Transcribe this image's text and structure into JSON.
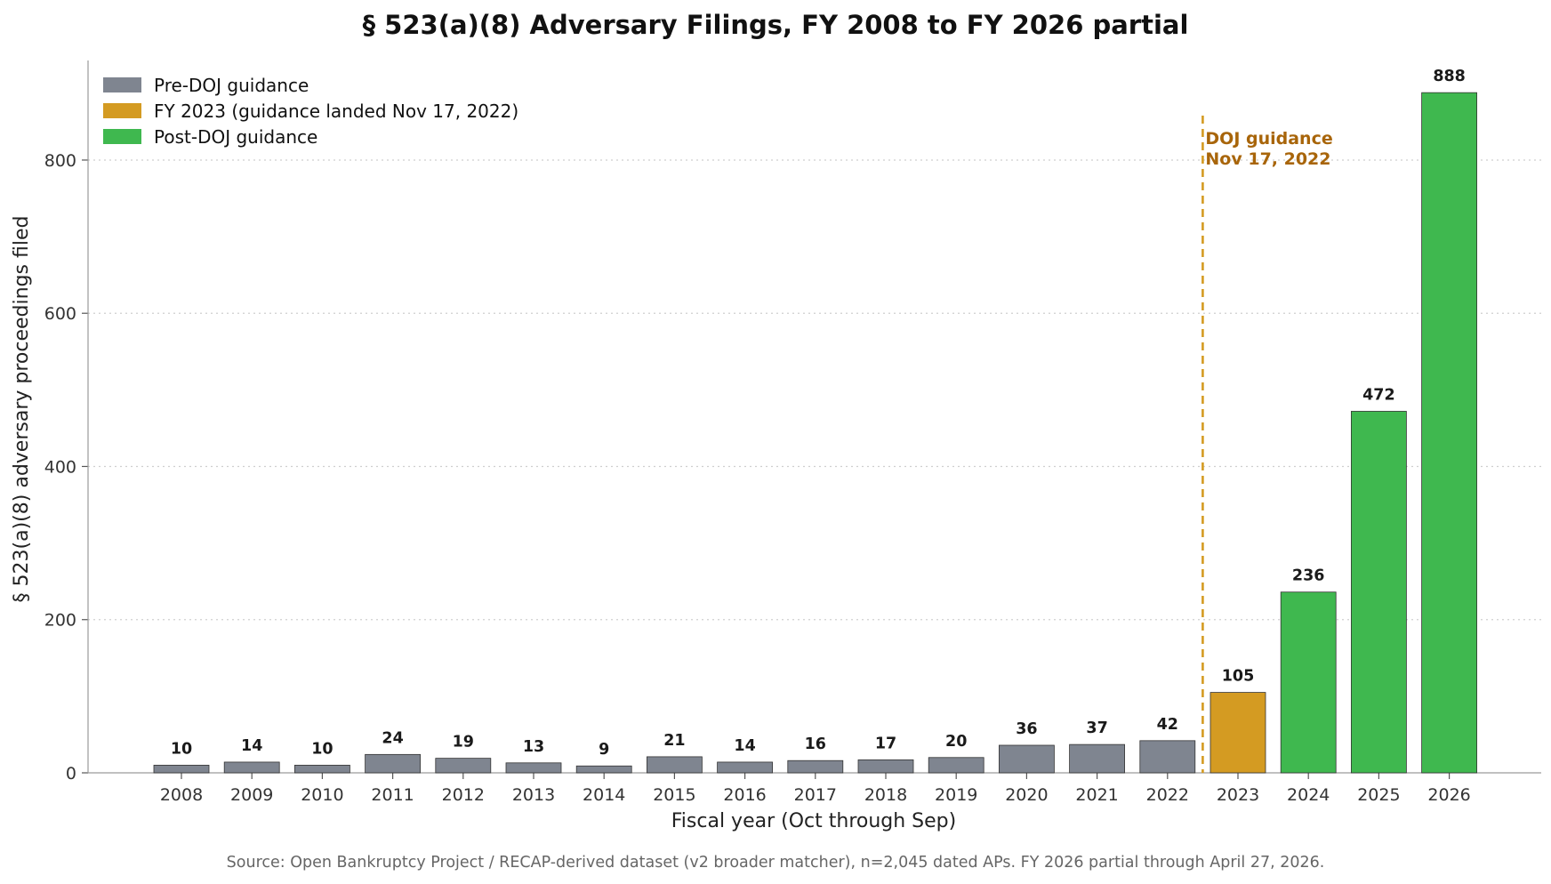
{
  "chart_data": {
    "type": "bar",
    "title": "§ 523(a)(8) Adversary Filings, FY 2008 to FY 2026 partial",
    "xlabel": "Fiscal year (Oct through Sep)",
    "ylabel": "§ 523(a)(8) adversary proceedings filed",
    "categories": [
      "2008",
      "2009",
      "2010",
      "2011",
      "2012",
      "2013",
      "2014",
      "2015",
      "2016",
      "2017",
      "2018",
      "2019",
      "2020",
      "2021",
      "2022",
      "2023",
      "2024",
      "2025",
      "2026"
    ],
    "values": [
      10,
      14,
      10,
      24,
      19,
      13,
      9,
      21,
      14,
      16,
      17,
      20,
      36,
      37,
      42,
      105,
      236,
      472,
      888
    ],
    "groups": [
      "pre",
      "pre",
      "pre",
      "pre",
      "pre",
      "pre",
      "pre",
      "pre",
      "pre",
      "pre",
      "pre",
      "pre",
      "pre",
      "pre",
      "pre",
      "fy2023",
      "post",
      "post",
      "post"
    ],
    "ylim": [
      0,
      930
    ],
    "yticks": [
      0,
      200,
      400,
      600,
      800
    ],
    "grid": "horizontal dotted",
    "legend_position": "top-left",
    "legend": [
      {
        "label": "Pre-DOJ guidance",
        "group": "pre",
        "color": "#7f8590"
      },
      {
        "label": "FY 2023 (guidance landed Nov 17, 2022)",
        "group": "fy2023",
        "color": "#d49b22"
      },
      {
        "label": "Post-DOJ guidance",
        "group": "post",
        "color": "#3fb84f"
      }
    ],
    "annotation": {
      "lines": [
        "DOJ guidance",
        "Nov 17, 2022"
      ],
      "color": "#a8650a",
      "line_color": "#d49b22",
      "position": "between 2022 and 2023"
    },
    "source": "Source: Open Bankruptcy Project / RECAP-derived dataset (v2 broader matcher), n=2,045 dated APs. FY 2026 partial through April 27, 2026."
  }
}
